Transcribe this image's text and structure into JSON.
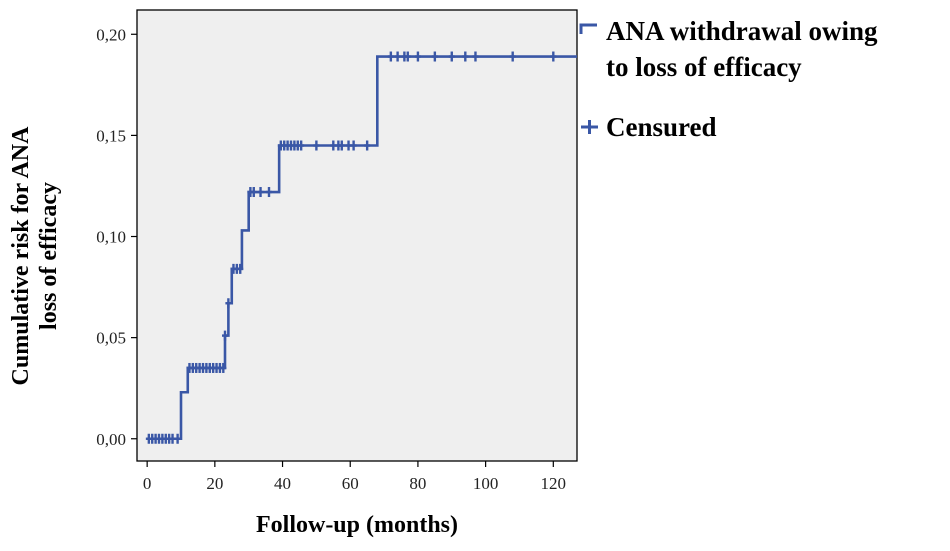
{
  "chart_data": {
    "type": "line",
    "subtype": "kaplan-meier-cumulative-risk-step",
    "title": "",
    "xlabel": "Follow-up (months)",
    "ylabel": [
      "Cumulative risk for ANA",
      "loss of efficacy"
    ],
    "xlim": [
      -3,
      127
    ],
    "ylim": [
      -0.011,
      0.212
    ],
    "xticks": [
      0,
      20,
      40,
      60,
      80,
      100,
      120
    ],
    "xtick_labels": [
      "0",
      "20",
      "40",
      "60",
      "80",
      "100",
      "120"
    ],
    "yticks": [
      0.0,
      0.05,
      0.1,
      0.15,
      0.2
    ],
    "ytick_labels": [
      "0,00",
      "0,05",
      "0,10",
      "0,15",
      "0,20"
    ],
    "grid": false,
    "legend_position": "right",
    "colors": {
      "series": "#3a57a6",
      "plot_background": "#efefef",
      "axis": "#000000"
    },
    "series": [
      {
        "name": "ANA withdrawal owing to loss of efficacy",
        "legend_lines": [
          "ANA withdrawal owing",
          "to loss of efficacy"
        ],
        "step_x": [
          0,
          10,
          12,
          23,
          24,
          25,
          28,
          30,
          39,
          68,
          130
        ],
        "step_y": [
          0.0,
          0.023,
          0.035,
          0.051,
          0.067,
          0.084,
          0.103,
          0.122,
          0.145,
          0.189,
          0.189
        ]
      },
      {
        "name": "Censured",
        "censored": [
          {
            "x": 0.5,
            "y": 0.0
          },
          {
            "x": 1.5,
            "y": 0.0
          },
          {
            "x": 2.5,
            "y": 0.0
          },
          {
            "x": 3.5,
            "y": 0.0
          },
          {
            "x": 4.5,
            "y": 0.0
          },
          {
            "x": 5.5,
            "y": 0.0
          },
          {
            "x": 6.5,
            "y": 0.0
          },
          {
            "x": 7.5,
            "y": 0.0
          },
          {
            "x": 9.0,
            "y": 0.0
          },
          {
            "x": 12.5,
            "y": 0.035
          },
          {
            "x": 13.5,
            "y": 0.035
          },
          {
            "x": 14.5,
            "y": 0.035
          },
          {
            "x": 15.5,
            "y": 0.035
          },
          {
            "x": 16.5,
            "y": 0.035
          },
          {
            "x": 17.5,
            "y": 0.035
          },
          {
            "x": 18.5,
            "y": 0.035
          },
          {
            "x": 19.5,
            "y": 0.035
          },
          {
            "x": 20.5,
            "y": 0.035
          },
          {
            "x": 21.5,
            "y": 0.035
          },
          {
            "x": 22.5,
            "y": 0.035
          },
          {
            "x": 23.0,
            "y": 0.051
          },
          {
            "x": 24.0,
            "y": 0.067
          },
          {
            "x": 25.5,
            "y": 0.084
          },
          {
            "x": 26.5,
            "y": 0.084
          },
          {
            "x": 27.5,
            "y": 0.084
          },
          {
            "x": 30.5,
            "y": 0.122
          },
          {
            "x": 31.5,
            "y": 0.122
          },
          {
            "x": 33.5,
            "y": 0.122
          },
          {
            "x": 36.0,
            "y": 0.122
          },
          {
            "x": 39.5,
            "y": 0.145
          },
          {
            "x": 40.5,
            "y": 0.145
          },
          {
            "x": 41.5,
            "y": 0.145
          },
          {
            "x": 42.5,
            "y": 0.145
          },
          {
            "x": 43.5,
            "y": 0.145
          },
          {
            "x": 44.5,
            "y": 0.145
          },
          {
            "x": 45.5,
            "y": 0.145
          },
          {
            "x": 50.0,
            "y": 0.145
          },
          {
            "x": 55.0,
            "y": 0.145
          },
          {
            "x": 56.5,
            "y": 0.145
          },
          {
            "x": 57.5,
            "y": 0.145
          },
          {
            "x": 59.5,
            "y": 0.145
          },
          {
            "x": 61.0,
            "y": 0.145
          },
          {
            "x": 65.0,
            "y": 0.145
          },
          {
            "x": 72.0,
            "y": 0.189
          },
          {
            "x": 74.0,
            "y": 0.189
          },
          {
            "x": 76.0,
            "y": 0.189
          },
          {
            "x": 77.0,
            "y": 0.189
          },
          {
            "x": 80.0,
            "y": 0.189
          },
          {
            "x": 85.0,
            "y": 0.189
          },
          {
            "x": 90.0,
            "y": 0.189
          },
          {
            "x": 94.0,
            "y": 0.189
          },
          {
            "x": 97.0,
            "y": 0.189
          },
          {
            "x": 108.0,
            "y": 0.189
          },
          {
            "x": 120.0,
            "y": 0.189
          }
        ]
      }
    ]
  }
}
